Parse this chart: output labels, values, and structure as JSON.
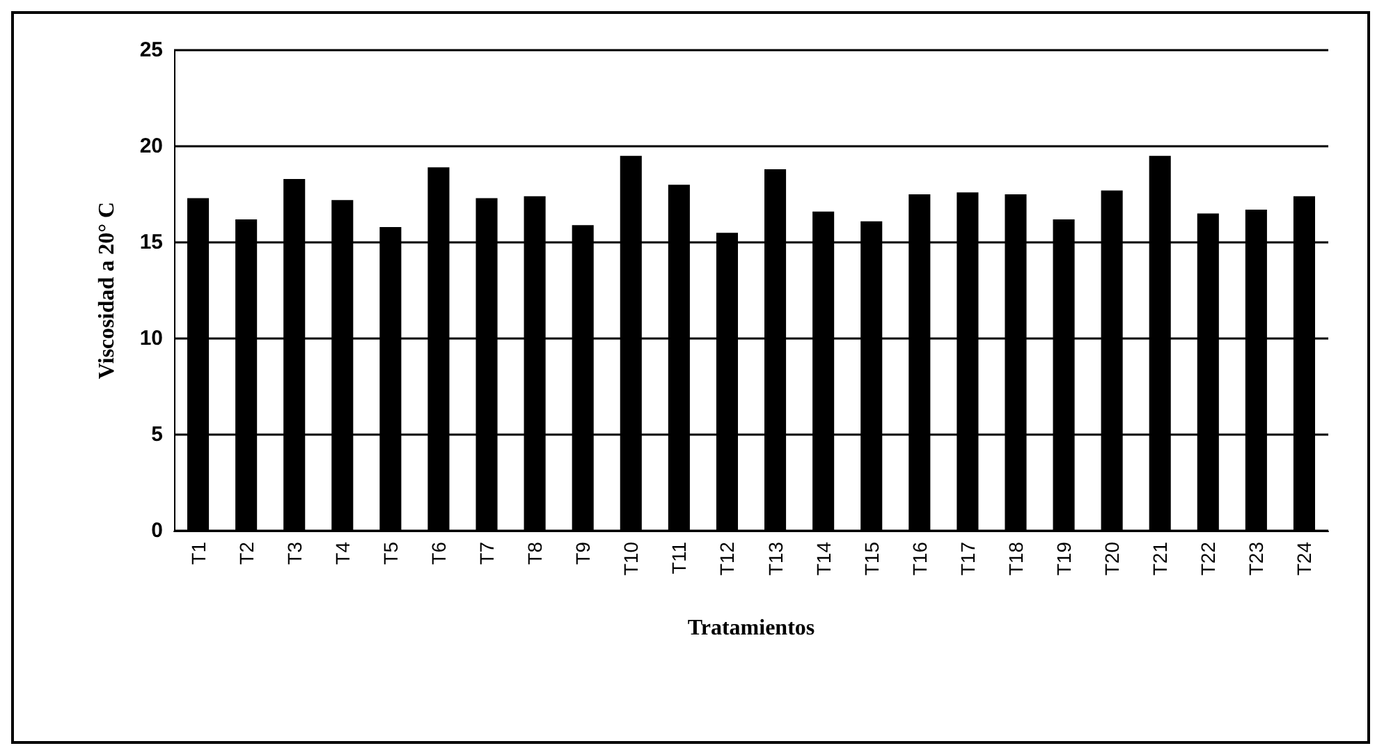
{
  "chart_data": {
    "type": "bar",
    "xlabel": "Tratamientos",
    "ylabel": "Viscosidad a 20° C",
    "categories": [
      "T1",
      "T2",
      "T3",
      "T4",
      "T5",
      "T6",
      "T7",
      "T8",
      "T9",
      "T10",
      "T11",
      "T12",
      "T13",
      "T14",
      "T15",
      "T16",
      "T17",
      "T18",
      "T19",
      "T20",
      "T21",
      "T22",
      "T23",
      "T24"
    ],
    "values": [
      17.3,
      16.2,
      18.3,
      17.2,
      15.8,
      18.9,
      17.3,
      17.4,
      15.9,
      19.5,
      18.0,
      15.5,
      18.8,
      16.6,
      16.1,
      17.5,
      17.6,
      17.5,
      16.2,
      17.7,
      19.5,
      16.5,
      16.7,
      17.4
    ],
    "color": "#000000",
    "ylim": [
      0,
      25
    ],
    "yticks": [
      0,
      5,
      10,
      15,
      20,
      25
    ],
    "grid": "y"
  }
}
